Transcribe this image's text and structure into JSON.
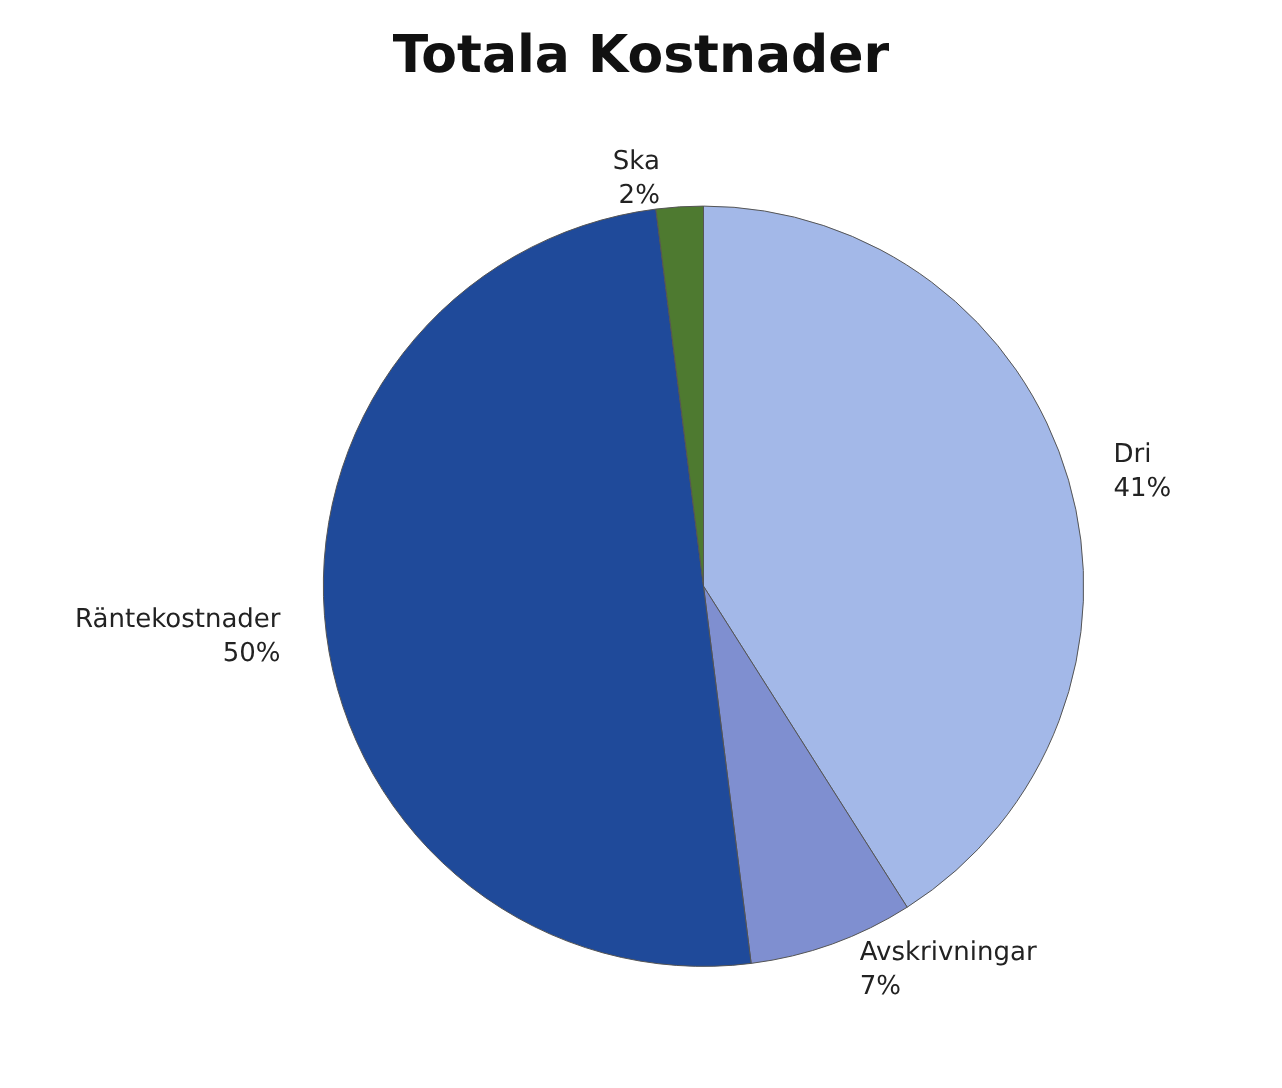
{
  "chart_data": {
    "type": "pie",
    "title": "Totala Kostnader",
    "categories": [
      "Dri",
      "Avskrivningar",
      "Räntekostnader",
      "Ska"
    ],
    "values": [
      41,
      7,
      50,
      2
    ],
    "value_labels": [
      "41%",
      "7%",
      "50%",
      "2%"
    ],
    "colors": [
      "#a3b8e8",
      "#7f8fd0",
      "#1f4a9a",
      "#4e7a30"
    ],
    "legend": false
  }
}
